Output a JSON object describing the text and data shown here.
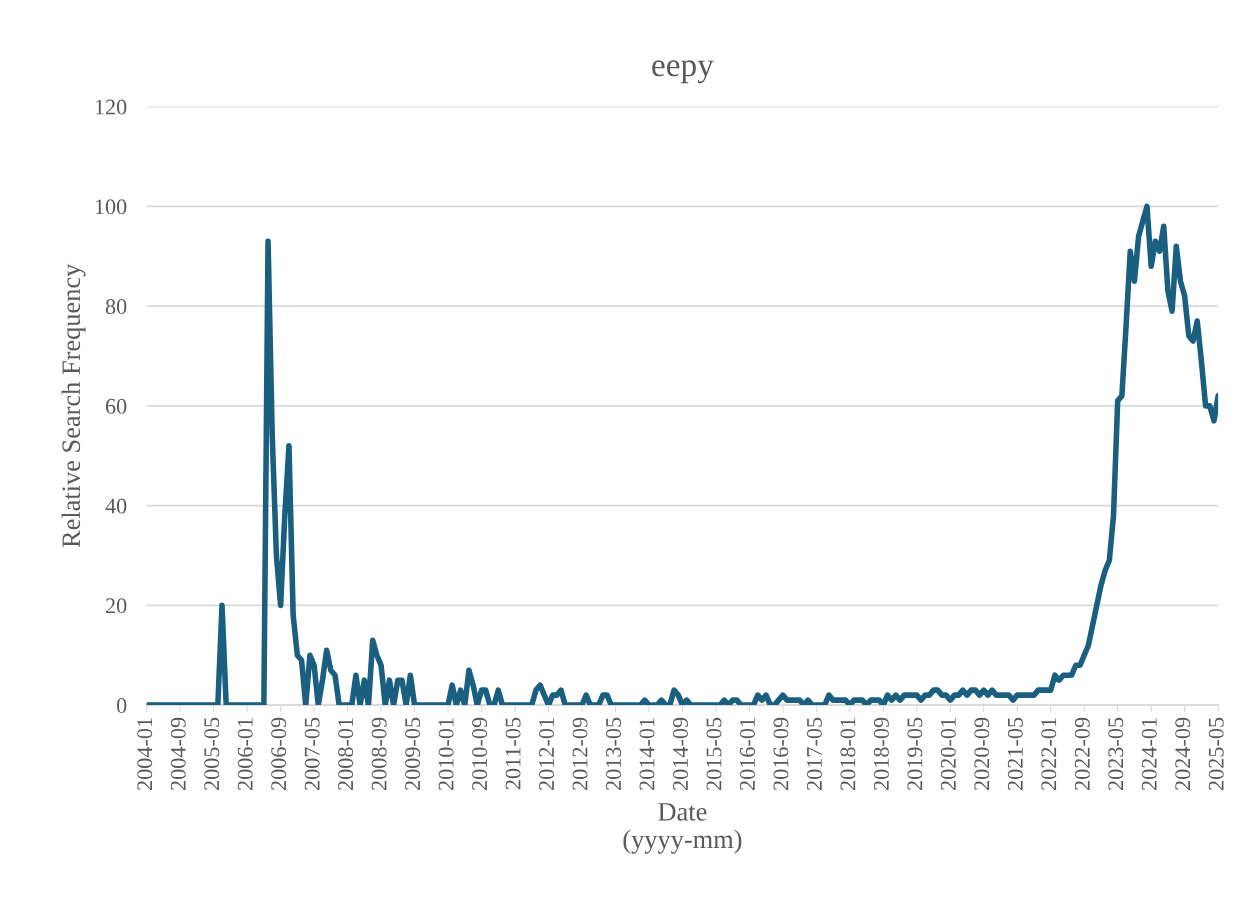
{
  "chart_data": {
    "type": "line",
    "title": "eepy",
    "xlabel": "Date\n(yyyy-mm)",
    "ylabel": "Relative Search Frequency",
    "categories": [
      "2004-01",
      null,
      null,
      null,
      null,
      null,
      null,
      null,
      "2004-09",
      null,
      null,
      null,
      null,
      null,
      null,
      null,
      "2005-05",
      null,
      null,
      null,
      null,
      null,
      null,
      null,
      "2006-01",
      null,
      null,
      null,
      null,
      null,
      null,
      null,
      "2006-09",
      null,
      null,
      null,
      null,
      null,
      null,
      null,
      "2007-05",
      null,
      null,
      null,
      null,
      null,
      null,
      null,
      "2008-01",
      null,
      null,
      null,
      null,
      null,
      null,
      null,
      "2008-09",
      null,
      null,
      null,
      null,
      null,
      null,
      null,
      "2009-05",
      null,
      null,
      null,
      null,
      null,
      null,
      null,
      "2010-01",
      null,
      null,
      null,
      null,
      null,
      null,
      null,
      "2010-09",
      null,
      null,
      null,
      null,
      null,
      null,
      null,
      "2011-05",
      null,
      null,
      null,
      null,
      null,
      null,
      null,
      "2012-01",
      null,
      null,
      null,
      null,
      null,
      null,
      null,
      "2012-09",
      null,
      null,
      null,
      null,
      null,
      null,
      null,
      "2013-05",
      null,
      null,
      null,
      null,
      null,
      null,
      null,
      "2014-01",
      null,
      null,
      null,
      null,
      null,
      null,
      null,
      "2014-09",
      null,
      null,
      null,
      null,
      null,
      null,
      null,
      "2015-05",
      null,
      null,
      null,
      null,
      null,
      null,
      null,
      "2016-01",
      null,
      null,
      null,
      null,
      null,
      null,
      null,
      "2016-09",
      null,
      null,
      null,
      null,
      null,
      null,
      null,
      "2017-05",
      null,
      null,
      null,
      null,
      null,
      null,
      null,
      "2018-01",
      null,
      null,
      null,
      null,
      null,
      null,
      null,
      "2018-09",
      null,
      null,
      null,
      null,
      null,
      null,
      null,
      "2019-05",
      null,
      null,
      null,
      null,
      null,
      null,
      null,
      "2020-01",
      null,
      null,
      null,
      null,
      null,
      null,
      null,
      "2020-09",
      null,
      null,
      null,
      null,
      null,
      null,
      null,
      "2021-05",
      null,
      null,
      null,
      null,
      null,
      null,
      null,
      "2022-01",
      null,
      null,
      null,
      null,
      null,
      null,
      null,
      "2022-09",
      null,
      null,
      null,
      null,
      null,
      null,
      null,
      "2023-05",
      null,
      null,
      null,
      null,
      null,
      null,
      null,
      "2024-01",
      null,
      null,
      null,
      null,
      null,
      null,
      null,
      "2024-09",
      null,
      null,
      null,
      null,
      null,
      null,
      null,
      "2025-05"
    ],
    "series": [
      {
        "color": "#1a5f80",
        "values": [
          0,
          0,
          0,
          0,
          0,
          0,
          0,
          0,
          0,
          0,
          0,
          0,
          0,
          0,
          0,
          0,
          0,
          0,
          20,
          0,
          0,
          0,
          0,
          0,
          0,
          0,
          0,
          0,
          0,
          93,
          54,
          30,
          20,
          38,
          52,
          18,
          10,
          9,
          0,
          10,
          8,
          0,
          5,
          11,
          7,
          6,
          0,
          0,
          0,
          0,
          6,
          0,
          5,
          0,
          13,
          10,
          8,
          0,
          5,
          0,
          5,
          5,
          0,
          6,
          0,
          0,
          0,
          0,
          0,
          0,
          0,
          0,
          0,
          4,
          0,
          3,
          0,
          7,
          4,
          0,
          3,
          3,
          0,
          0,
          3,
          0,
          0,
          0,
          0,
          0,
          0,
          0,
          0,
          3,
          4,
          2,
          0,
          2,
          2,
          3,
          0,
          0,
          0,
          0,
          0,
          2,
          0,
          0,
          0,
          2,
          2,
          0,
          0,
          0,
          0,
          0,
          0,
          0,
          0,
          1,
          0,
          0,
          0,
          1,
          0,
          0,
          3,
          2,
          0,
          1,
          0,
          0,
          0,
          0,
          0,
          0,
          0,
          0,
          1,
          0,
          1,
          1,
          0,
          0,
          0,
          0,
          2,
          1,
          2,
          0,
          0,
          1,
          2,
          1,
          1,
          1,
          1,
          0,
          1,
          0,
          0,
          0,
          0,
          2,
          1,
          1,
          1,
          1,
          0,
          1,
          1,
          1,
          0,
          1,
          1,
          1,
          0,
          2,
          1,
          2,
          1,
          2,
          2,
          2,
          2,
          1,
          2,
          2,
          3,
          3,
          2,
          2,
          1,
          2,
          2,
          3,
          2,
          3,
          3,
          2,
          3,
          2,
          3,
          2,
          2,
          2,
          2,
          1,
          2,
          2,
          2,
          2,
          2,
          3,
          3,
          3,
          3,
          6,
          5,
          6,
          6,
          6,
          8,
          8,
          10,
          12,
          16,
          20,
          24,
          27,
          29,
          38,
          61,
          62,
          76,
          91,
          85,
          94,
          97,
          100,
          88,
          93,
          91,
          96,
          83,
          79,
          92,
          85,
          82,
          74,
          73,
          77,
          69,
          60,
          60,
          57,
          62
        ]
      }
    ],
    "ylim": [
      0,
      120
    ],
    "yticks": [
      0,
      20,
      40,
      60,
      80,
      100,
      120
    ],
    "grid": "y"
  }
}
